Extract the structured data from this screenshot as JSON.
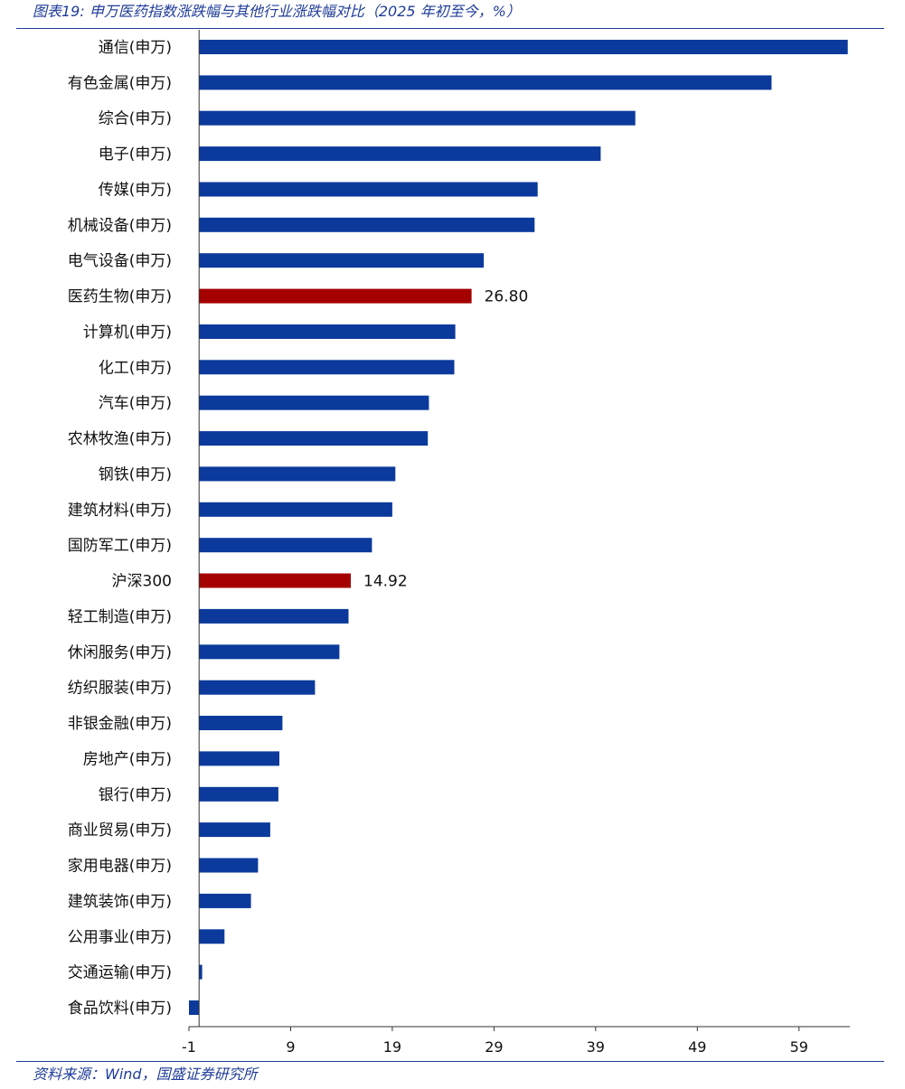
{
  "header": {
    "title": "图表19:  申万医药指数涨跌幅与其他行业涨跌幅对比（2025 年初至今，%）"
  },
  "footer": {
    "source": "资料来源：Wind，国盛证券研究所"
  },
  "colors": {
    "accent": "#1f3c99",
    "bar_default": "#0b3a9c",
    "bar_highlight": "#a50000",
    "axis": "#333333"
  },
  "chart_data": {
    "type": "bar",
    "orientation": "horizontal",
    "title": "",
    "xlabel": "",
    "ylabel": "",
    "xlim": [
      -1,
      64
    ],
    "x_ticks": [
      -1,
      9,
      19,
      29,
      39,
      49,
      59
    ],
    "grid": false,
    "legend": "none",
    "categories": [
      "通信(申万)",
      "有色金属(申万)",
      "综合(申万)",
      "电子(申万)",
      "传媒(申万)",
      "机械设备(申万)",
      "电气设备(申万)",
      "医药生物(申万)",
      "计算机(申万)",
      "化工(申万)",
      "汽车(申万)",
      "农林牧渔(申万)",
      "钢铁(申万)",
      "建筑材料(申万)",
      "国防军工(申万)",
      "沪深300",
      "轻工制造(申万)",
      "休闲服务(申万)",
      "纺织服装(申万)",
      "非银金融(申万)",
      "房地产(申万)",
      "银行(申万)",
      "商业贸易(申万)",
      "家用电器(申万)",
      "建筑装饰(申万)",
      "公用事业(申万)",
      "交通运输(申万)",
      "食品饮料(申万)"
    ],
    "values": [
      63.8,
      56.3,
      42.9,
      39.5,
      33.3,
      33.0,
      28.0,
      26.8,
      25.2,
      25.1,
      22.6,
      22.5,
      19.3,
      19.0,
      17.0,
      14.92,
      14.7,
      13.8,
      11.4,
      8.2,
      7.9,
      7.8,
      7.0,
      5.8,
      5.1,
      2.5,
      0.3,
      -1.0
    ],
    "highlight": [
      "医药生物(申万)",
      "沪深300"
    ],
    "data_labels": {
      "医药生物(申万)": "26.80",
      "沪深300": "14.92"
    }
  }
}
